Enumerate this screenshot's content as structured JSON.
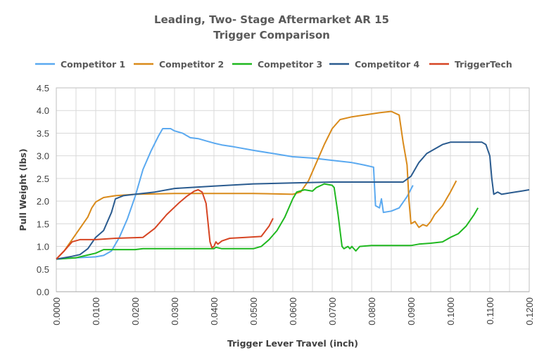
{
  "chart_data": {
    "type": "line",
    "title": [
      "Leading, Two- Stage Aftermarket AR 15",
      "Trigger Comparison"
    ],
    "xlabel": "Trigger Lever Travel (inch)",
    "ylabel": "Pull Weight (lbs)",
    "xlim": [
      0,
      0.12
    ],
    "ylim": [
      0,
      4.5
    ],
    "xticks": [
      0,
      0.01,
      0.02,
      0.03,
      0.04,
      0.05,
      0.06,
      0.07,
      0.08,
      0.09,
      0.1,
      0.11,
      0.12
    ],
    "xtick_labels": [
      "0.0000",
      "0.0100",
      "0.0200",
      "0.0300",
      "0.0400",
      "0.0500",
      "0.0600",
      "0.0700",
      "0.0800",
      "0.0900",
      "0.1000",
      "0.1100",
      "0.1200"
    ],
    "yticks": [
      0,
      0.5,
      1,
      1.5,
      2,
      2.5,
      3,
      3.5,
      4,
      4.5
    ],
    "ytick_labels": [
      "0.0",
      "0.5",
      "1.0",
      "1.5",
      "2.0",
      "2.5",
      "3.0",
      "3.5",
      "4.0",
      "4.5"
    ],
    "grid": true,
    "legend_position": "top",
    "series": [
      {
        "name": "Competitor 1",
        "color": "#5aa9f0",
        "points": [
          [
            0,
            0.72
          ],
          [
            0.005,
            0.75
          ],
          [
            0.01,
            0.77
          ],
          [
            0.012,
            0.8
          ],
          [
            0.014,
            0.9
          ],
          [
            0.016,
            1.2
          ],
          [
            0.018,
            1.6
          ],
          [
            0.02,
            2.1
          ],
          [
            0.022,
            2.7
          ],
          [
            0.024,
            3.1
          ],
          [
            0.026,
            3.45
          ],
          [
            0.027,
            3.6
          ],
          [
            0.029,
            3.6
          ],
          [
            0.03,
            3.55
          ],
          [
            0.032,
            3.5
          ],
          [
            0.034,
            3.4
          ],
          [
            0.036,
            3.38
          ],
          [
            0.038,
            3.33
          ],
          [
            0.04,
            3.28
          ],
          [
            0.042,
            3.24
          ],
          [
            0.045,
            3.2
          ],
          [
            0.05,
            3.12
          ],
          [
            0.055,
            3.05
          ],
          [
            0.06,
            2.98
          ],
          [
            0.065,
            2.95
          ],
          [
            0.07,
            2.9
          ],
          [
            0.075,
            2.85
          ],
          [
            0.078,
            2.8
          ],
          [
            0.0805,
            2.75
          ],
          [
            0.081,
            1.9
          ],
          [
            0.082,
            1.85
          ],
          [
            0.0825,
            2.05
          ],
          [
            0.083,
            1.75
          ],
          [
            0.085,
            1.78
          ],
          [
            0.087,
            1.85
          ],
          [
            0.089,
            2.1
          ],
          [
            0.0905,
            2.35
          ]
        ]
      },
      {
        "name": "Competitor 2",
        "color": "#d98a1a",
        "points": [
          [
            0,
            0.72
          ],
          [
            0.002,
            0.9
          ],
          [
            0.004,
            1.15
          ],
          [
            0.006,
            1.4
          ],
          [
            0.008,
            1.65
          ],
          [
            0.009,
            1.85
          ],
          [
            0.01,
            1.98
          ],
          [
            0.012,
            2.08
          ],
          [
            0.015,
            2.12
          ],
          [
            0.02,
            2.15
          ],
          [
            0.03,
            2.17
          ],
          [
            0.05,
            2.17
          ],
          [
            0.06,
            2.15
          ],
          [
            0.062,
            2.2
          ],
          [
            0.064,
            2.45
          ],
          [
            0.066,
            2.85
          ],
          [
            0.068,
            3.25
          ],
          [
            0.07,
            3.6
          ],
          [
            0.072,
            3.8
          ],
          [
            0.075,
            3.86
          ],
          [
            0.078,
            3.9
          ],
          [
            0.082,
            3.95
          ],
          [
            0.085,
            3.98
          ],
          [
            0.087,
            3.9
          ],
          [
            0.088,
            3.3
          ],
          [
            0.089,
            2.8
          ],
          [
            0.0895,
            2.0
          ],
          [
            0.09,
            1.5
          ],
          [
            0.091,
            1.55
          ],
          [
            0.092,
            1.42
          ],
          [
            0.093,
            1.48
          ],
          [
            0.094,
            1.45
          ],
          [
            0.095,
            1.55
          ],
          [
            0.096,
            1.7
          ],
          [
            0.098,
            1.9
          ],
          [
            0.1,
            2.2
          ],
          [
            0.1015,
            2.45
          ]
        ]
      },
      {
        "name": "Competitor 3",
        "color": "#1fb81f",
        "points": [
          [
            0,
            0.72
          ],
          [
            0.005,
            0.75
          ],
          [
            0.01,
            0.85
          ],
          [
            0.012,
            0.93
          ],
          [
            0.02,
            0.93
          ],
          [
            0.022,
            0.95
          ],
          [
            0.04,
            0.95
          ],
          [
            0.0405,
            0.98
          ],
          [
            0.042,
            0.95
          ],
          [
            0.05,
            0.95
          ],
          [
            0.052,
            1.0
          ],
          [
            0.054,
            1.15
          ],
          [
            0.056,
            1.35
          ],
          [
            0.058,
            1.65
          ],
          [
            0.06,
            2.05
          ],
          [
            0.061,
            2.2
          ],
          [
            0.063,
            2.25
          ],
          [
            0.065,
            2.22
          ],
          [
            0.066,
            2.3
          ],
          [
            0.068,
            2.38
          ],
          [
            0.07,
            2.35
          ],
          [
            0.0705,
            2.3
          ],
          [
            0.0715,
            1.7
          ],
          [
            0.0725,
            1.0
          ],
          [
            0.073,
            0.95
          ],
          [
            0.074,
            1.0
          ],
          [
            0.0745,
            0.95
          ],
          [
            0.075,
            1.0
          ],
          [
            0.076,
            0.9
          ],
          [
            0.077,
            1.0
          ],
          [
            0.08,
            1.02
          ],
          [
            0.085,
            1.02
          ],
          [
            0.09,
            1.02
          ],
          [
            0.092,
            1.05
          ],
          [
            0.095,
            1.07
          ],
          [
            0.098,
            1.1
          ],
          [
            0.1,
            1.2
          ],
          [
            0.102,
            1.28
          ],
          [
            0.104,
            1.45
          ],
          [
            0.106,
            1.7
          ],
          [
            0.107,
            1.85
          ]
        ]
      },
      {
        "name": "Competitor 4",
        "color": "#2a5b8f",
        "points": [
          [
            0,
            0.72
          ],
          [
            0.004,
            0.78
          ],
          [
            0.006,
            0.82
          ],
          [
            0.008,
            0.95
          ],
          [
            0.01,
            1.2
          ],
          [
            0.012,
            1.35
          ],
          [
            0.014,
            1.75
          ],
          [
            0.015,
            2.05
          ],
          [
            0.017,
            2.12
          ],
          [
            0.02,
            2.15
          ],
          [
            0.025,
            2.2
          ],
          [
            0.03,
            2.28
          ],
          [
            0.04,
            2.33
          ],
          [
            0.05,
            2.38
          ],
          [
            0.06,
            2.4
          ],
          [
            0.07,
            2.42
          ],
          [
            0.08,
            2.42
          ],
          [
            0.088,
            2.42
          ],
          [
            0.09,
            2.55
          ],
          [
            0.092,
            2.85
          ],
          [
            0.094,
            3.05
          ],
          [
            0.096,
            3.15
          ],
          [
            0.098,
            3.25
          ],
          [
            0.1,
            3.3
          ],
          [
            0.105,
            3.3
          ],
          [
            0.108,
            3.3
          ],
          [
            0.109,
            3.25
          ],
          [
            0.11,
            3.0
          ],
          [
            0.1105,
            2.5
          ],
          [
            0.111,
            2.15
          ],
          [
            0.112,
            2.2
          ],
          [
            0.113,
            2.15
          ],
          [
            0.115,
            2.18
          ],
          [
            0.118,
            2.22
          ],
          [
            0.12,
            2.25
          ]
        ]
      },
      {
        "name": "TriggerTech",
        "color": "#d64523",
        "points": [
          [
            0,
            0.72
          ],
          [
            0.002,
            0.9
          ],
          [
            0.004,
            1.1
          ],
          [
            0.006,
            1.15
          ],
          [
            0.01,
            1.15
          ],
          [
            0.015,
            1.18
          ],
          [
            0.022,
            1.2
          ],
          [
            0.025,
            1.4
          ],
          [
            0.028,
            1.7
          ],
          [
            0.031,
            1.95
          ],
          [
            0.033,
            2.1
          ],
          [
            0.035,
            2.22
          ],
          [
            0.036,
            2.25
          ],
          [
            0.037,
            2.2
          ],
          [
            0.038,
            1.95
          ],
          [
            0.039,
            1.1
          ],
          [
            0.0395,
            0.97
          ],
          [
            0.04,
            1.0
          ],
          [
            0.0405,
            1.1
          ],
          [
            0.041,
            1.05
          ],
          [
            0.042,
            1.12
          ],
          [
            0.044,
            1.18
          ],
          [
            0.048,
            1.2
          ],
          [
            0.052,
            1.22
          ],
          [
            0.054,
            1.45
          ],
          [
            0.055,
            1.62
          ]
        ]
      }
    ]
  }
}
